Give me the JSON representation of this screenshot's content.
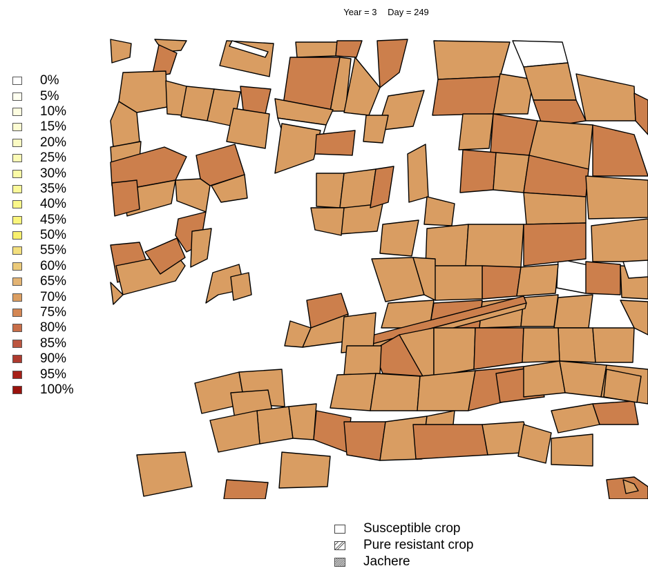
{
  "header": {
    "year_label": "Year = 3",
    "day_label": "Day = 249"
  },
  "scale": {
    "items": [
      {
        "label": "0%",
        "color": "#ffffff"
      },
      {
        "label": "5%",
        "color": "#fefff0"
      },
      {
        "label": "10%",
        "color": "#fdfde0"
      },
      {
        "label": "15%",
        "color": "#fcfcd2"
      },
      {
        "label": "20%",
        "color": "#fbfbc4"
      },
      {
        "label": "25%",
        "color": "#fbfbb6"
      },
      {
        "label": "30%",
        "color": "#fbfba6"
      },
      {
        "label": "35%",
        "color": "#fbf99a"
      },
      {
        "label": "40%",
        "color": "#faf78a"
      },
      {
        "label": "45%",
        "color": "#faf57c"
      },
      {
        "label": "50%",
        "color": "#f9f06e"
      },
      {
        "label": "55%",
        "color": "#f3df7e"
      },
      {
        "label": "60%",
        "color": "#ebca7a"
      },
      {
        "label": "65%",
        "color": "#e3b474"
      },
      {
        "label": "70%",
        "color": "#db9e62"
      },
      {
        "label": "75%",
        "color": "#d48754"
      },
      {
        "label": "80%",
        "color": "#c86e48"
      },
      {
        "label": "85%",
        "color": "#bc5640"
      },
      {
        "label": "90%",
        "color": "#ae3a2e"
      },
      {
        "label": "95%",
        "color": "#a62018"
      },
      {
        "label": "100%",
        "color": "#9a120c"
      }
    ]
  },
  "map": {
    "field_color": "#d99d62",
    "field_dark_color": "#cc7f4c",
    "outline_color": "#000000"
  },
  "legend": {
    "items": [
      {
        "label": "Susceptible crop",
        "pattern": "none"
      },
      {
        "label": "Pure resistant crop",
        "pattern": "hatch"
      },
      {
        "label": "Jachere",
        "pattern": "dense-hatch"
      }
    ]
  }
}
